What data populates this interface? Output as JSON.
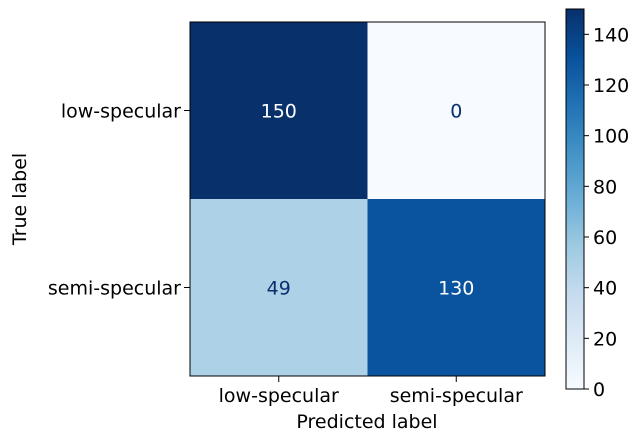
{
  "chart_data": {
    "type": "heatmap",
    "title": "",
    "xlabel": "Predicted label",
    "ylabel": "True label",
    "x_categories": [
      "low-specular",
      "semi-specular"
    ],
    "y_categories": [
      "low-specular",
      "semi-specular"
    ],
    "values": [
      [
        150,
        0
      ],
      [
        49,
        130
      ]
    ],
    "colormap": "Blues",
    "colorbar": {
      "min": 0,
      "max": 150,
      "ticks": [
        0,
        20,
        40,
        60,
        80,
        100,
        120,
        140
      ],
      "tick_labels": [
        "0",
        "20",
        "40",
        "60",
        "80",
        "100",
        "120",
        "140"
      ]
    },
    "grid": false,
    "legend": "colorbar-right"
  },
  "colors": {
    "low": "#f7fbff",
    "high": "#08306b",
    "text_dark": "#08306b",
    "text_light": "#ffffff",
    "axis": "#000000"
  }
}
